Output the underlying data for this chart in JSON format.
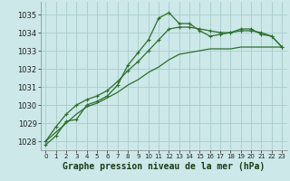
{
  "xlabel": "Graphe pression niveau de la mer (hPa)",
  "bg_color": "#cce8e8",
  "grid_color": "#aacccc",
  "line_color": "#2d6e2d",
  "xlim": [
    -0.5,
    23.5
  ],
  "ylim": [
    1027.5,
    1035.7
  ],
  "yticks": [
    1028,
    1029,
    1030,
    1031,
    1032,
    1033,
    1034,
    1035
  ],
  "xticks": [
    0,
    1,
    2,
    3,
    4,
    5,
    6,
    7,
    8,
    9,
    10,
    11,
    12,
    13,
    14,
    15,
    16,
    17,
    18,
    19,
    20,
    21,
    22,
    23
  ],
  "series1_x": [
    0,
    1,
    2,
    3,
    4,
    5,
    6,
    7,
    8,
    9,
    10,
    11,
    12,
    13,
    14,
    15,
    16,
    17,
    18,
    19,
    20,
    21,
    22,
    23
  ],
  "series1_y": [
    1027.8,
    1028.3,
    1029.1,
    1029.2,
    1030.0,
    1030.2,
    1030.5,
    1031.1,
    1032.2,
    1032.9,
    1033.6,
    1034.8,
    1035.1,
    1034.5,
    1034.5,
    1034.1,
    1033.8,
    1033.9,
    1034.0,
    1034.2,
    1034.2,
    1033.9,
    1033.8,
    1033.2
  ],
  "series2_x": [
    0,
    1,
    2,
    3,
    4,
    5,
    6,
    7,
    8,
    9,
    10,
    11,
    12,
    13,
    14,
    15,
    16,
    17,
    18,
    19,
    20,
    21,
    22,
    23
  ],
  "series2_y": [
    1028.0,
    1028.8,
    1029.5,
    1030.0,
    1030.3,
    1030.5,
    1030.8,
    1031.3,
    1031.9,
    1032.4,
    1033.0,
    1033.6,
    1034.2,
    1034.3,
    1034.3,
    1034.2,
    1034.1,
    1034.0,
    1034.0,
    1034.1,
    1034.1,
    1034.0,
    1033.8,
    1033.2
  ],
  "series3_x": [
    0,
    1,
    2,
    3,
    4,
    5,
    6,
    7,
    8,
    9,
    10,
    11,
    12,
    13,
    14,
    15,
    16,
    17,
    18,
    19,
    20,
    21,
    22,
    23
  ],
  "series3_y": [
    1028.0,
    1028.5,
    1029.0,
    1029.5,
    1029.9,
    1030.1,
    1030.4,
    1030.7,
    1031.1,
    1031.4,
    1031.8,
    1032.1,
    1032.5,
    1032.8,
    1032.9,
    1033.0,
    1033.1,
    1033.1,
    1033.1,
    1033.2,
    1033.2,
    1033.2,
    1033.2,
    1033.2
  ],
  "font_size_label": 7,
  "tick_font_size": 5.5,
  "marker_size": 3.5,
  "line_width": 0.9
}
